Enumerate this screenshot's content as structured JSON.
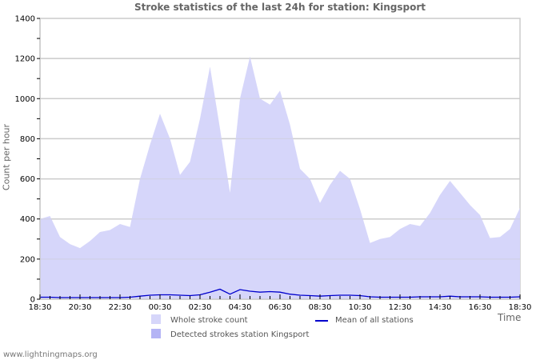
{
  "chart_data": {
    "type": "area",
    "title": "Stroke statistics of the last 24h for station: Kingsport",
    "xlabel": "Time",
    "ylabel": "Count per hour",
    "ylim": [
      0,
      1400
    ],
    "yticks": [
      0,
      200,
      400,
      600,
      800,
      1000,
      1200,
      1400
    ],
    "xtick_labels": [
      "18:30",
      "20:30",
      "22:30",
      "00:30",
      "02:30",
      "04:30",
      "06:30",
      "08:30",
      "10:30",
      "12:30",
      "14:30",
      "16:30",
      "18:30"
    ],
    "grid": true,
    "legend_position": "bottom",
    "x": [
      "18:30",
      "19:00",
      "19:30",
      "20:00",
      "20:30",
      "21:00",
      "21:30",
      "22:00",
      "22:30",
      "23:00",
      "23:30",
      "00:00",
      "00:30",
      "01:00",
      "01:30",
      "02:00",
      "02:30",
      "03:00",
      "03:30",
      "04:00",
      "04:30",
      "05:00",
      "05:30",
      "06:00",
      "06:30",
      "07:00",
      "07:30",
      "08:00",
      "08:30",
      "09:00",
      "09:30",
      "10:00",
      "10:30",
      "11:00",
      "11:30",
      "12:00",
      "12:30",
      "13:00",
      "13:30",
      "14:00",
      "14:30",
      "15:00",
      "15:30",
      "16:00",
      "16:30",
      "17:00",
      "17:30",
      "18:00",
      "18:30"
    ],
    "series": [
      {
        "name": "Whole stroke count",
        "type": "area",
        "color": "#d6d6fa",
        "values": [
          400,
          415,
          310,
          275,
          255,
          290,
          335,
          345,
          375,
          360,
          600,
          770,
          925,
          800,
          620,
          685,
          900,
          1160,
          850,
          530,
          1000,
          1210,
          1000,
          970,
          1040,
          870,
          650,
          600,
          480,
          570,
          640,
          600,
          450,
          280,
          300,
          310,
          350,
          375,
          365,
          430,
          520,
          590,
          530,
          470,
          420,
          305,
          310,
          350,
          455
        ]
      },
      {
        "name": "Detected strokes station Kingsport",
        "type": "area",
        "color": "#b4b4f5",
        "values": [
          0,
          0,
          0,
          0,
          0,
          0,
          0,
          0,
          0,
          0,
          0,
          0,
          0,
          0,
          0,
          0,
          0,
          0,
          0,
          0,
          0,
          0,
          0,
          0,
          0,
          0,
          0,
          0,
          0,
          0,
          0,
          0,
          0,
          0,
          0,
          0,
          0,
          0,
          0,
          0,
          0,
          0,
          0,
          0,
          0,
          0,
          0,
          0,
          0
        ]
      },
      {
        "name": "Mean of all stations",
        "type": "line",
        "color": "#0000cc",
        "values": [
          10,
          10,
          8,
          8,
          8,
          8,
          8,
          8,
          8,
          10,
          15,
          20,
          22,
          22,
          20,
          18,
          22,
          35,
          50,
          25,
          48,
          40,
          35,
          38,
          35,
          25,
          20,
          18,
          15,
          18,
          20,
          20,
          18,
          12,
          10,
          10,
          10,
          10,
          12,
          12,
          12,
          15,
          12,
          12,
          12,
          10,
          10,
          10,
          12
        ]
      }
    ]
  },
  "legend": {
    "whole": "Whole stroke count",
    "mean": "Mean of all stations",
    "detected": "Detected strokes station Kingsport"
  },
  "footer": "www.lightningmaps.org"
}
